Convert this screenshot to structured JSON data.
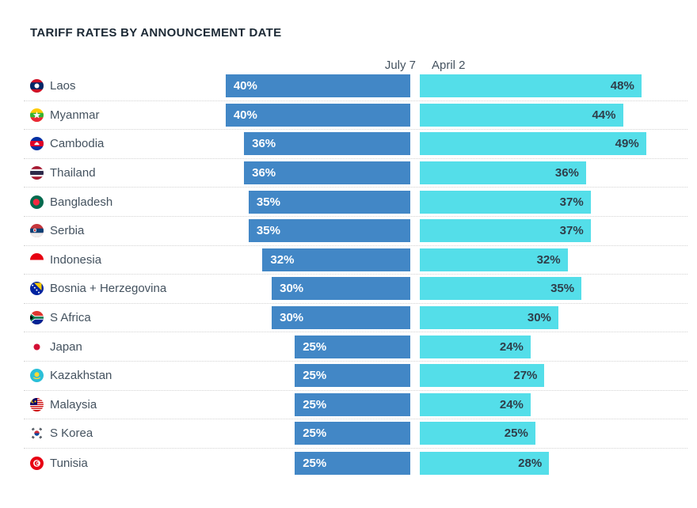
{
  "title": "TARIFF RATES BY ANNOUNCEMENT DATE",
  "columns": {
    "july": "July 7",
    "april": "April 2"
  },
  "colors": {
    "july_bar": "#4287c6",
    "april_bar": "#54dee9",
    "july_label": "#ffffff",
    "april_label": "#2f3e4a",
    "title_text": "#1c2935",
    "country_text": "#44525f",
    "header_text": "#44525f",
    "row_divider": "#d3d3d3"
  },
  "chart_data": {
    "type": "bar",
    "orientation": "horizontal",
    "title": "TARIFF RATES BY ANNOUNCEMENT DATE",
    "categories": [
      "Laos",
      "Myanmar",
      "Cambodia",
      "Thailand",
      "Bangladesh",
      "Serbia",
      "Indonesia",
      "Bosnia + Herzegovina",
      "S Africa",
      "Japan",
      "Kazakhstan",
      "Malaysia",
      "S Korea",
      "Tunisia"
    ],
    "series": [
      {
        "name": "July 7",
        "values": [
          40,
          40,
          36,
          36,
          35,
          35,
          32,
          30,
          30,
          25,
          25,
          25,
          25,
          25
        ]
      },
      {
        "name": "April 2",
        "values": [
          48,
          44,
          49,
          36,
          37,
          37,
          32,
          35,
          30,
          24,
          27,
          24,
          25,
          28
        ]
      }
    ],
    "value_suffix": "%",
    "value_labels": true,
    "axis_max": 50,
    "grid": false,
    "legend_position": "column-headers-top"
  },
  "rows": [
    {
      "country": "Laos",
      "flag_icon": "laos-flag-icon",
      "july7": 40,
      "april2": 48
    },
    {
      "country": "Myanmar",
      "flag_icon": "myanmar-flag-icon",
      "july7": 40,
      "april2": 44
    },
    {
      "country": "Cambodia",
      "flag_icon": "cambodia-flag-icon",
      "july7": 36,
      "april2": 49
    },
    {
      "country": "Thailand",
      "flag_icon": "thailand-flag-icon",
      "july7": 36,
      "april2": 36
    },
    {
      "country": "Bangladesh",
      "flag_icon": "bangladesh-flag-icon",
      "july7": 35,
      "april2": 37
    },
    {
      "country": "Serbia",
      "flag_icon": "serbia-flag-icon",
      "july7": 35,
      "april2": 37
    },
    {
      "country": "Indonesia",
      "flag_icon": "indonesia-flag-icon",
      "july7": 32,
      "april2": 32
    },
    {
      "country": "Bosnia + Herzegovina",
      "flag_icon": "bosnia-flag-icon",
      "july7": 30,
      "april2": 35
    },
    {
      "country": "S Africa",
      "flag_icon": "s-africa-flag-icon",
      "july7": 30,
      "april2": 30
    },
    {
      "country": "Japan",
      "flag_icon": "japan-flag-icon",
      "july7": 25,
      "april2": 24
    },
    {
      "country": "Kazakhstan",
      "flag_icon": "kazakhstan-flag-icon",
      "july7": 25,
      "april2": 27
    },
    {
      "country": "Malaysia",
      "flag_icon": "malaysia-flag-icon",
      "july7": 25,
      "april2": 24
    },
    {
      "country": "S Korea",
      "flag_icon": "s-korea-flag-icon",
      "july7": 25,
      "april2": 25
    },
    {
      "country": "Tunisia",
      "flag_icon": "tunisia-flag-icon",
      "july7": 25,
      "april2": 28
    }
  ]
}
